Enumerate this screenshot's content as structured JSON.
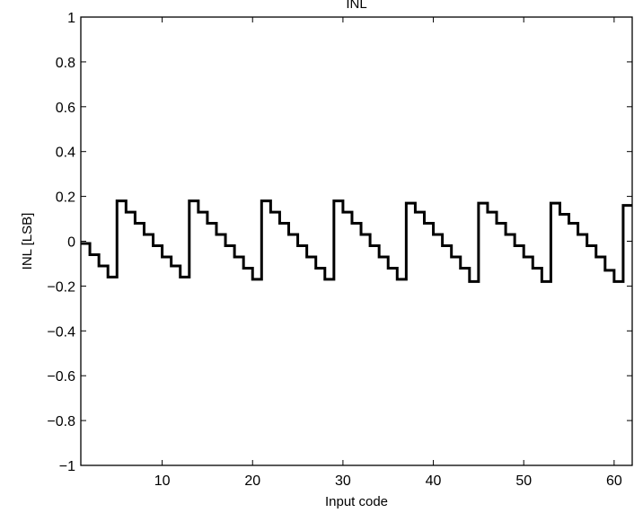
{
  "chart_data": {
    "type": "line",
    "title": "INL",
    "xlabel": "Input code",
    "ylabel": "INL [LSB]",
    "xlim": [
      1,
      62
    ],
    "ylim": [
      -1,
      1
    ],
    "grid": false,
    "step": true,
    "line_color": "#000000",
    "xticks": [
      10,
      20,
      30,
      40,
      50,
      60
    ],
    "xtick_labels": [
      "10",
      "20",
      "30",
      "40",
      "50",
      "60"
    ],
    "yticks": [
      -1,
      -0.8,
      -0.6,
      -0.4,
      -0.2,
      0,
      0.2,
      0.4,
      0.6,
      0.8,
      1
    ],
    "ytick_labels": [
      "−1",
      "−0.8",
      "−0.6",
      "−0.4",
      "−0.2",
      "0",
      "0.2",
      "0.4",
      "0.6",
      "0.8",
      "1"
    ],
    "x": [
      1,
      2,
      3,
      4,
      5,
      6,
      7,
      8,
      9,
      10,
      11,
      12,
      13,
      14,
      15,
      16,
      17,
      18,
      19,
      20,
      21,
      22,
      23,
      24,
      25,
      26,
      27,
      28,
      29,
      30,
      31,
      32,
      33,
      34,
      35,
      36,
      37,
      38,
      39,
      40,
      41,
      42,
      43,
      44,
      45,
      46,
      47,
      48,
      49,
      50,
      51,
      52,
      53,
      54,
      55,
      56,
      57,
      58,
      59,
      60,
      61,
      62
    ],
    "series": [
      {
        "values": [
          -0.01,
          -0.06,
          -0.11,
          -0.16,
          0.18,
          0.13,
          0.08,
          0.03,
          -0.02,
          -0.07,
          -0.11,
          -0.16,
          0.18,
          0.13,
          0.08,
          0.03,
          -0.02,
          -0.07,
          -0.12,
          -0.17,
          0.18,
          0.13,
          0.08,
          0.03,
          -0.02,
          -0.07,
          -0.12,
          -0.17,
          0.18,
          0.13,
          0.08,
          0.03,
          -0.02,
          -0.07,
          -0.12,
          -0.17,
          0.17,
          0.13,
          0.08,
          0.03,
          -0.02,
          -0.07,
          -0.12,
          -0.18,
          0.17,
          0.13,
          0.08,
          0.03,
          -0.02,
          -0.07,
          -0.12,
          -0.18,
          0.17,
          0.12,
          0.08,
          0.03,
          -0.02,
          -0.07,
          -0.13,
          -0.18,
          0.16,
          0.16
        ]
      }
    ]
  }
}
